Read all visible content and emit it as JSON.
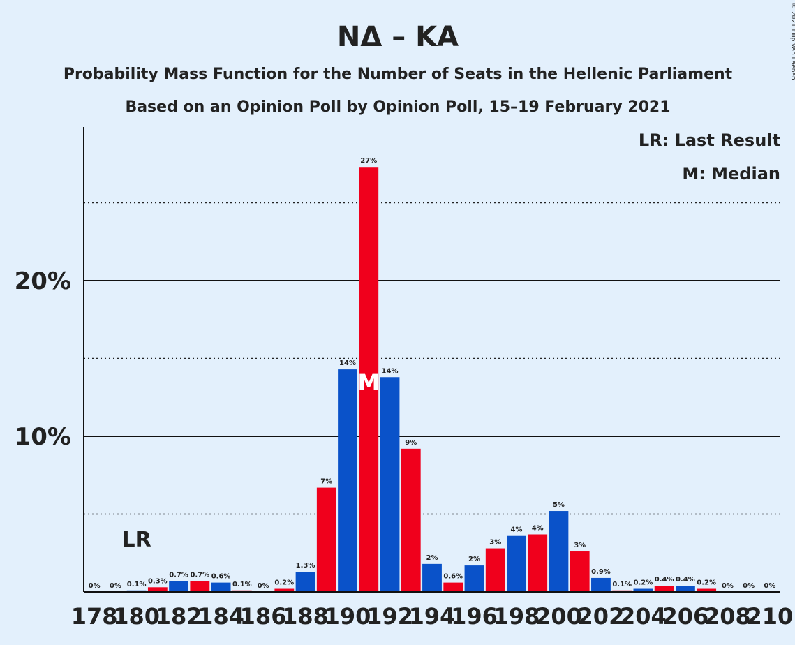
{
  "chart_data": {
    "type": "bar",
    "title": "NΔ – KA",
    "subtitle": [
      "Probability Mass Function for the Number of Seats in the Hellenic Parliament",
      "Based on an Opinion Poll by Opinion Poll, 15–19 February 2021"
    ],
    "legend": [
      "LR: Last Result",
      "M: Median"
    ],
    "copyright": "© 2021 Filip van Laenen",
    "x": [
      178,
      179,
      180,
      181,
      182,
      183,
      184,
      185,
      186,
      187,
      188,
      189,
      190,
      191,
      192,
      193,
      194,
      195,
      196,
      197,
      198,
      199,
      200,
      201,
      202,
      203,
      204,
      205,
      206,
      207,
      208,
      209,
      210
    ],
    "series": [
      {
        "name": "NΔ – KA",
        "colors": [
          "#0a52c9",
          "#f0001c",
          "#0a52c9",
          "#f0001c",
          "#0a52c9",
          "#f0001c",
          "#0a52c9",
          "#f0001c",
          "#0a52c9",
          "#f0001c",
          "#0a52c9",
          "#f0001c",
          "#0a52c9",
          "#f0001c",
          "#0a52c9",
          "#f0001c",
          "#0a52c9",
          "#f0001c",
          "#0a52c9",
          "#f0001c",
          "#0a52c9",
          "#f0001c",
          "#0a52c9",
          "#f0001c",
          "#0a52c9",
          "#f0001c",
          "#0a52c9",
          "#f0001c",
          "#0a52c9",
          "#f0001c",
          "#0a52c9",
          "#f0001c",
          "#0a52c9"
        ],
        "values": [
          0,
          0,
          0.1,
          0.3,
          0.7,
          0.7,
          0.6,
          0.1,
          0,
          0.2,
          1.3,
          6.7,
          14.3,
          27.3,
          13.8,
          9.2,
          1.8,
          0.6,
          1.7,
          2.8,
          3.6,
          3.7,
          5.2,
          2.6,
          0.9,
          0.1,
          0.2,
          0.4,
          0.4,
          0.2,
          0,
          0,
          0
        ],
        "value_labels": [
          "0%",
          "0%",
          "0.1%",
          "0.3%",
          "0.7%",
          "0.7%",
          "0.6%",
          "0.1%",
          "0%",
          "0.2%",
          "1.3%",
          "7%",
          "14%",
          "27%",
          "14%",
          "9%",
          "2%",
          "0.6%",
          "2%",
          "3%",
          "4%",
          "4%",
          "5%",
          "3%",
          "0.9%",
          "0.1%",
          "0.2%",
          "0.4%",
          "0.4%",
          "0.2%",
          "0%",
          "0%",
          "0%"
        ]
      }
    ],
    "xlim": [
      177.5,
      210.5
    ],
    "xticks": [
      178,
      180,
      182,
      184,
      186,
      188,
      190,
      192,
      194,
      196,
      198,
      200,
      202,
      204,
      206,
      208,
      210
    ],
    "ylim": [
      0,
      30
    ],
    "yticks": [
      {
        "value": 10,
        "label": "10%"
      },
      {
        "value": 20,
        "label": "20%"
      }
    ],
    "minor_yticks": [
      5,
      15,
      25
    ],
    "last_result": {
      "label": "LR",
      "x": 180
    },
    "median": {
      "label": "M",
      "x": 191
    }
  }
}
